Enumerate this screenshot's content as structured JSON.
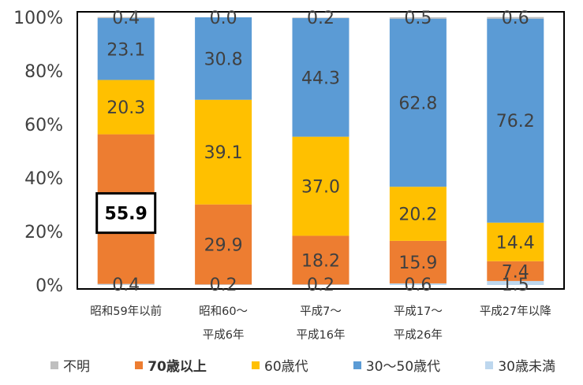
{
  "chart_data": {
    "type": "bar",
    "stacked": true,
    "percent": true,
    "title": "",
    "xlabel": "",
    "ylabel": "",
    "ylim": [
      0,
      100
    ],
    "yticks": [
      "0%",
      "20%",
      "40%",
      "60%",
      "80%",
      "100%"
    ],
    "categories": [
      [
        "昭和59年以前"
      ],
      [
        "昭和60～",
        "平成6年"
      ],
      [
        "平成7～",
        "平成16年"
      ],
      [
        "平成17～",
        "平成26年"
      ],
      [
        "平成27年以降"
      ]
    ],
    "series": [
      {
        "name": "不明",
        "color": "#bfbfbf",
        "values": [
          0.0,
          0.0,
          0.0,
          0.0,
          0.0
        ],
        "labels": [
          "",
          "",
          "",
          "",
          ""
        ]
      },
      {
        "name": "30歳未満",
        "color": "#bdd7ee",
        "values": [
          0.4,
          0.2,
          0.2,
          0.6,
          1.5
        ],
        "labels": [
          "0.4",
          "0.2",
          "0.2",
          "0.6",
          "1.5"
        ]
      },
      {
        "name": "70歳以上",
        "color": "#ed7d31",
        "values": [
          55.9,
          29.9,
          18.2,
          15.9,
          7.4
        ],
        "labels": [
          "55.9",
          "29.9",
          "18.2",
          "15.9",
          "7.4"
        ],
        "highlight_index": 0
      },
      {
        "name": "60歳代",
        "color": "#ffc000",
        "values": [
          20.3,
          39.1,
          37.0,
          20.2,
          14.4
        ],
        "labels": [
          "20.3",
          "39.1",
          "37.0",
          "20.2",
          "14.4"
        ]
      },
      {
        "name": "30～50歳代",
        "color": "#5b9bd5",
        "values": [
          23.1,
          30.8,
          44.3,
          62.8,
          76.2
        ],
        "labels": [
          "23.1",
          "30.8",
          "44.3",
          "62.8",
          "76.2"
        ]
      },
      {
        "name": "不明_top",
        "color": "#bfbfbf",
        "values": [
          0.4,
          0.0,
          0.2,
          0.5,
          0.6
        ],
        "labels": [
          "0.4",
          "0.0",
          "0.2",
          "0.5",
          "0.6"
        ]
      }
    ],
    "legend": [
      {
        "name": "不明",
        "color": "#bfbfbf",
        "bold": false
      },
      {
        "name": "70歳以上",
        "color": "#ed7d31",
        "bold": true
      },
      {
        "name": "60歳代",
        "color": "#ffc000",
        "bold": false
      },
      {
        "name": "30～50歳代",
        "color": "#5b9bd5",
        "bold": false
      },
      {
        "name": "30歳未満",
        "color": "#bdd7ee",
        "bold": false
      }
    ],
    "legend_position": "bottom",
    "grid": false
  }
}
